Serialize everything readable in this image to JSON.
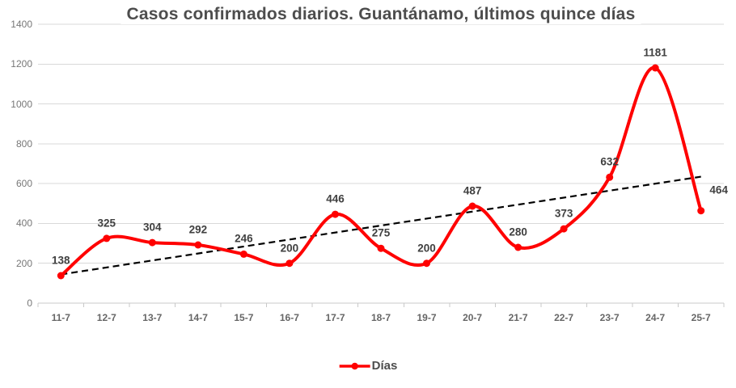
{
  "title": "Casos confirmados diarios. Guantánamo, últimos quince días",
  "legend": {
    "label": "Días"
  },
  "colors": {
    "series": "#ff0000",
    "trendline": "#000000",
    "gridline": "#d9d9d9",
    "axis_line": "#c8c8c8",
    "background": "#ffffff",
    "data_label": "#404040",
    "tick_label": "#666666",
    "title": "#4d4d4d"
  },
  "chart_data": {
    "type": "line",
    "title": "Casos confirmados diarios. Guantánamo, últimos quince días",
    "categories": [
      "11-7",
      "12-7",
      "13-7",
      "14-7",
      "15-7",
      "16-7",
      "17-7",
      "18-7",
      "19-7",
      "20-7",
      "21-7",
      "22-7",
      "23-7",
      "24-7",
      "25-7"
    ],
    "series": [
      {
        "name": "Días",
        "values": [
          138,
          325,
          304,
          292,
          246,
          200,
          446,
          275,
          200,
          487,
          280,
          373,
          632,
          1181,
          464
        ],
        "color": "#ff0000",
        "smooth": true,
        "markers": true,
        "data_labels": true
      }
    ],
    "trendline": {
      "type": "linear",
      "style": "dashed",
      "color": "#000000",
      "start_value": 144,
      "end_value": 635
    },
    "xlabel": "",
    "ylabel": "",
    "ylim": [
      0,
      1400
    ],
    "y_ticks": [
      0,
      200,
      400,
      600,
      800,
      1000,
      1200,
      1400
    ],
    "grid": "horizontal",
    "legend_position": "bottom"
  }
}
